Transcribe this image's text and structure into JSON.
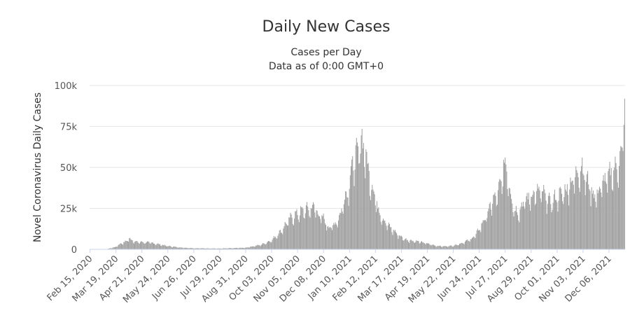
{
  "chart_data": {
    "type": "bar",
    "title": "Daily New Cases",
    "subtitle_line1": "Cases per Day",
    "subtitle_line2": "Data as of 0:00 GMT+0",
    "ylabel": "Novel Coronavirus Daily Cases",
    "ylim": [
      0,
      100000
    ],
    "yticks": [
      {
        "value": 0,
        "label": "0"
      },
      {
        "value": 25000,
        "label": "25k"
      },
      {
        "value": 50000,
        "label": "50k"
      },
      {
        "value": 75000,
        "label": "75k"
      },
      {
        "value": 100000,
        "label": "100k"
      }
    ],
    "x_start": "Feb 15, 2020",
    "x_end": "Dec 21, 2021",
    "x_tick_labels": [
      "Feb 15, 2020",
      "Mar 19, 2020",
      "Apr 21, 2020",
      "May 24, 2020",
      "Jun 26, 2020",
      "Jul 29, 2020",
      "Aug 31, 2020",
      "Oct 03, 2020",
      "Nov 05, 2020",
      "Dec 08, 2020",
      "Jan 10, 2021",
      "Feb 12, 2021",
      "Mar 17, 2021",
      "Apr 19, 2021",
      "May 22, 2021",
      "Jun 24, 2021",
      "Jul 27, 2021",
      "Aug 29, 2021",
      "Oct 01, 2021",
      "Nov 03, 2021",
      "Dec 06, 2021"
    ],
    "series": [
      {
        "name": "Daily Cases",
        "keypoints": [
          {
            "day": 0,
            "value": 0
          },
          {
            "day": 22,
            "value": 200
          },
          {
            "day": 33,
            "value": 1500
          },
          {
            "day": 38,
            "value": 3200
          },
          {
            "day": 45,
            "value": 4500
          },
          {
            "day": 50,
            "value": 6500
          },
          {
            "day": 58,
            "value": 4500
          },
          {
            "day": 75,
            "value": 4200
          },
          {
            "day": 85,
            "value": 3300
          },
          {
            "day": 99,
            "value": 2000
          },
          {
            "day": 115,
            "value": 1100
          },
          {
            "day": 132,
            "value": 700
          },
          {
            "day": 165,
            "value": 500
          },
          {
            "day": 198,
            "value": 1000
          },
          {
            "day": 218,
            "value": 2800
          },
          {
            "day": 231,
            "value": 5500
          },
          {
            "day": 243,
            "value": 11000
          },
          {
            "day": 253,
            "value": 18000
          },
          {
            "day": 264,
            "value": 21500
          },
          {
            "day": 272,
            "value": 23500
          },
          {
            "day": 280,
            "value": 24500
          },
          {
            "day": 286,
            "value": 26000
          },
          {
            "day": 290,
            "value": 21000
          },
          {
            "day": 297,
            "value": 18500
          },
          {
            "day": 304,
            "value": 13000
          },
          {
            "day": 311,
            "value": 15000
          },
          {
            "day": 318,
            "value": 20000
          },
          {
            "day": 323,
            "value": 30000
          },
          {
            "day": 329,
            "value": 37000
          },
          {
            "day": 333,
            "value": 50000
          },
          {
            "day": 338,
            "value": 55000
          },
          {
            "day": 342,
            "value": 60000
          },
          {
            "day": 345,
            "value": 67000
          },
          {
            "day": 348,
            "value": 62000
          },
          {
            "day": 352,
            "value": 54000
          },
          {
            "day": 356,
            "value": 42000
          },
          {
            "day": 361,
            "value": 35000
          },
          {
            "day": 366,
            "value": 25000
          },
          {
            "day": 373,
            "value": 18000
          },
          {
            "day": 380,
            "value": 14000
          },
          {
            "day": 387,
            "value": 11000
          },
          {
            "day": 394,
            "value": 8000
          },
          {
            "day": 401,
            "value": 6000
          },
          {
            "day": 410,
            "value": 5200
          },
          {
            "day": 420,
            "value": 4500
          },
          {
            "day": 429,
            "value": 3500
          },
          {
            "day": 440,
            "value": 2200
          },
          {
            "day": 450,
            "value": 1800
          },
          {
            "day": 462,
            "value": 2200
          },
          {
            "day": 473,
            "value": 3800
          },
          {
            "day": 484,
            "value": 6000
          },
          {
            "day": 491,
            "value": 9000
          },
          {
            "day": 497,
            "value": 14000
          },
          {
            "day": 504,
            "value": 20000
          },
          {
            "day": 511,
            "value": 28000
          },
          {
            "day": 518,
            "value": 33000
          },
          {
            "day": 523,
            "value": 40000
          },
          {
            "day": 527,
            "value": 53000
          },
          {
            "day": 531,
            "value": 46000
          },
          {
            "day": 535,
            "value": 33000
          },
          {
            "day": 540,
            "value": 24000
          },
          {
            "day": 545,
            "value": 22000
          },
          {
            "day": 551,
            "value": 28000
          },
          {
            "day": 557,
            "value": 31000
          },
          {
            "day": 564,
            "value": 33000
          },
          {
            "day": 571,
            "value": 35000
          },
          {
            "day": 578,
            "value": 33000
          },
          {
            "day": 585,
            "value": 28000
          },
          {
            "day": 592,
            "value": 31000
          },
          {
            "day": 599,
            "value": 33000
          },
          {
            "day": 606,
            "value": 36000
          },
          {
            "day": 613,
            "value": 41000
          },
          {
            "day": 620,
            "value": 46000
          },
          {
            "day": 626,
            "value": 50000
          },
          {
            "day": 631,
            "value": 42000
          },
          {
            "day": 636,
            "value": 38000
          },
          {
            "day": 641,
            "value": 32000
          },
          {
            "day": 646,
            "value": 34000
          },
          {
            "day": 650,
            "value": 38000
          },
          {
            "day": 655,
            "value": 42000
          },
          {
            "day": 660,
            "value": 44000
          },
          {
            "day": 664,
            "value": 47000
          },
          {
            "day": 668,
            "value": 48000
          },
          {
            "day": 672,
            "value": 52000
          },
          {
            "day": 676,
            "value": 56000
          },
          {
            "day": 678,
            "value": 60000
          },
          {
            "day": 679,
            "value": 76000
          },
          {
            "day": 680,
            "value": 92000
          }
        ]
      }
    ]
  }
}
